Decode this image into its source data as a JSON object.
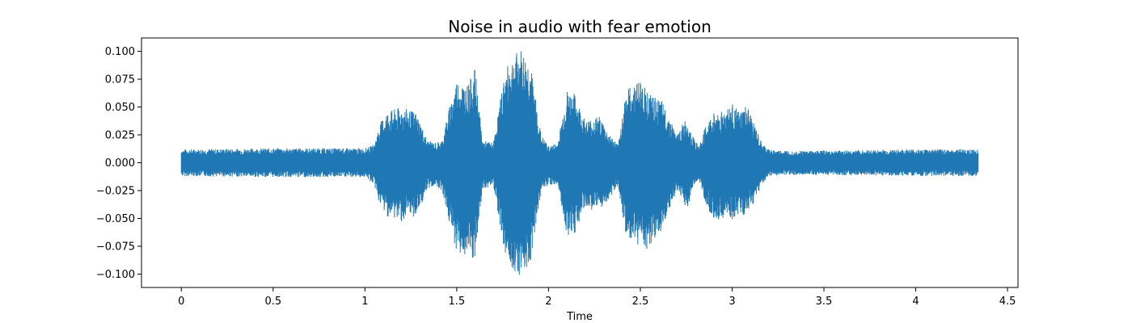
{
  "chart_data": {
    "type": "area",
    "title": "Noise in audio with fear emotion",
    "xlabel": "Time",
    "ylabel": "",
    "xlim": [
      -0.217,
      4.557
    ],
    "ylim": [
      -0.112,
      0.112
    ],
    "x_ticks": [
      0,
      0.5,
      1,
      1.5,
      2,
      2.5,
      3,
      3.5,
      4,
      4.5
    ],
    "x_tick_labels": [
      "0",
      "0.5",
      "1",
      "1.5",
      "2",
      "2.5",
      "3",
      "3.5",
      "4",
      "4.5"
    ],
    "y_ticks": [
      0.1,
      0.075,
      0.05,
      0.025,
      0.0,
      -0.025,
      -0.05,
      -0.075,
      -0.1
    ],
    "y_tick_labels": [
      "0.100",
      "0.075",
      "0.050",
      "0.025",
      "0.000",
      "−0.025",
      "−0.050",
      "−0.075",
      "−0.100"
    ],
    "grid": false,
    "color": "#1f77b4",
    "series": [
      {
        "duration": 4.34,
        "envelope": {
          "x": [
            0.0,
            0.5,
            1.0,
            1.05,
            1.08,
            1.12,
            1.2,
            1.28,
            1.34,
            1.38,
            1.42,
            1.46,
            1.5,
            1.56,
            1.6,
            1.64,
            1.7,
            1.76,
            1.8,
            1.85,
            1.9,
            1.96,
            2.0,
            2.05,
            2.1,
            2.14,
            2.2,
            2.28,
            2.32,
            2.38,
            2.42,
            2.5,
            2.56,
            2.62,
            2.7,
            2.74,
            2.76,
            2.78,
            2.82,
            2.86,
            2.9,
            2.96,
            3.0,
            3.04,
            3.08,
            3.12,
            3.16,
            3.2,
            3.25,
            3.32,
            3.4,
            3.5,
            4.0,
            4.34
          ],
          "upper": [
            0.012,
            0.013,
            0.013,
            0.016,
            0.035,
            0.046,
            0.05,
            0.045,
            0.02,
            0.018,
            0.02,
            0.05,
            0.075,
            0.07,
            0.085,
            0.02,
            0.018,
            0.08,
            0.095,
            0.102,
            0.09,
            0.025,
            0.015,
            0.018,
            0.065,
            0.062,
            0.038,
            0.042,
            0.028,
            0.016,
            0.065,
            0.075,
            0.06,
            0.055,
            0.025,
            0.038,
            0.04,
            0.025,
            0.015,
            0.035,
            0.045,
            0.048,
            0.053,
            0.045,
            0.052,
            0.035,
            0.018,
            0.012,
            0.011,
            0.011,
            0.011,
            0.011,
            0.012,
            0.012
          ],
          "lower": [
            -0.012,
            -0.013,
            -0.013,
            -0.02,
            -0.038,
            -0.048,
            -0.053,
            -0.048,
            -0.025,
            -0.02,
            -0.025,
            -0.055,
            -0.08,
            -0.087,
            -0.09,
            -0.025,
            -0.02,
            -0.08,
            -0.095,
            -0.102,
            -0.09,
            -0.025,
            -0.02,
            -0.02,
            -0.065,
            -0.065,
            -0.04,
            -0.045,
            -0.035,
            -0.02,
            -0.068,
            -0.075,
            -0.08,
            -0.06,
            -0.025,
            -0.038,
            -0.04,
            -0.025,
            -0.015,
            -0.04,
            -0.05,
            -0.052,
            -0.053,
            -0.045,
            -0.05,
            -0.035,
            -0.02,
            -0.012,
            -0.011,
            -0.011,
            -0.011,
            -0.011,
            -0.012,
            -0.012
          ]
        }
      }
    ]
  }
}
